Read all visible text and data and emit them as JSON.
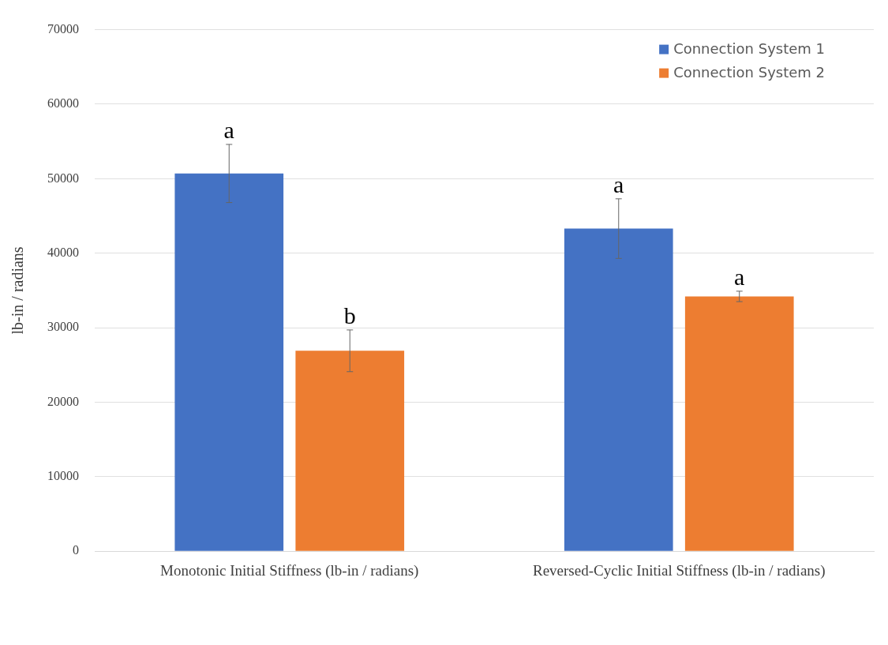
{
  "chart_data": {
    "type": "bar",
    "ylabel": "lb-in / radians",
    "categories": [
      "Monotonic Initial Stiffness (lb-in / radians)",
      "Reversed-Cyclic Initial Stiffness (lb-in / radians)"
    ],
    "series": [
      {
        "name": "Connection System 1",
        "color": "#4472c4",
        "values": [
          50700,
          43300
        ],
        "errors": [
          3900,
          4000
        ]
      },
      {
        "name": "Connection System 2",
        "color": "#ed7d31",
        "values": [
          26900,
          34200
        ],
        "errors": [
          2800,
          700
        ]
      }
    ],
    "ylim": [
      0,
      70000
    ],
    "yticks": [
      0,
      10000,
      20000,
      30000,
      40000,
      50000,
      60000,
      70000
    ],
    "grid": "y",
    "legend": "top right",
    "annotations": [
      "a",
      "b",
      "a",
      "a"
    ]
  }
}
